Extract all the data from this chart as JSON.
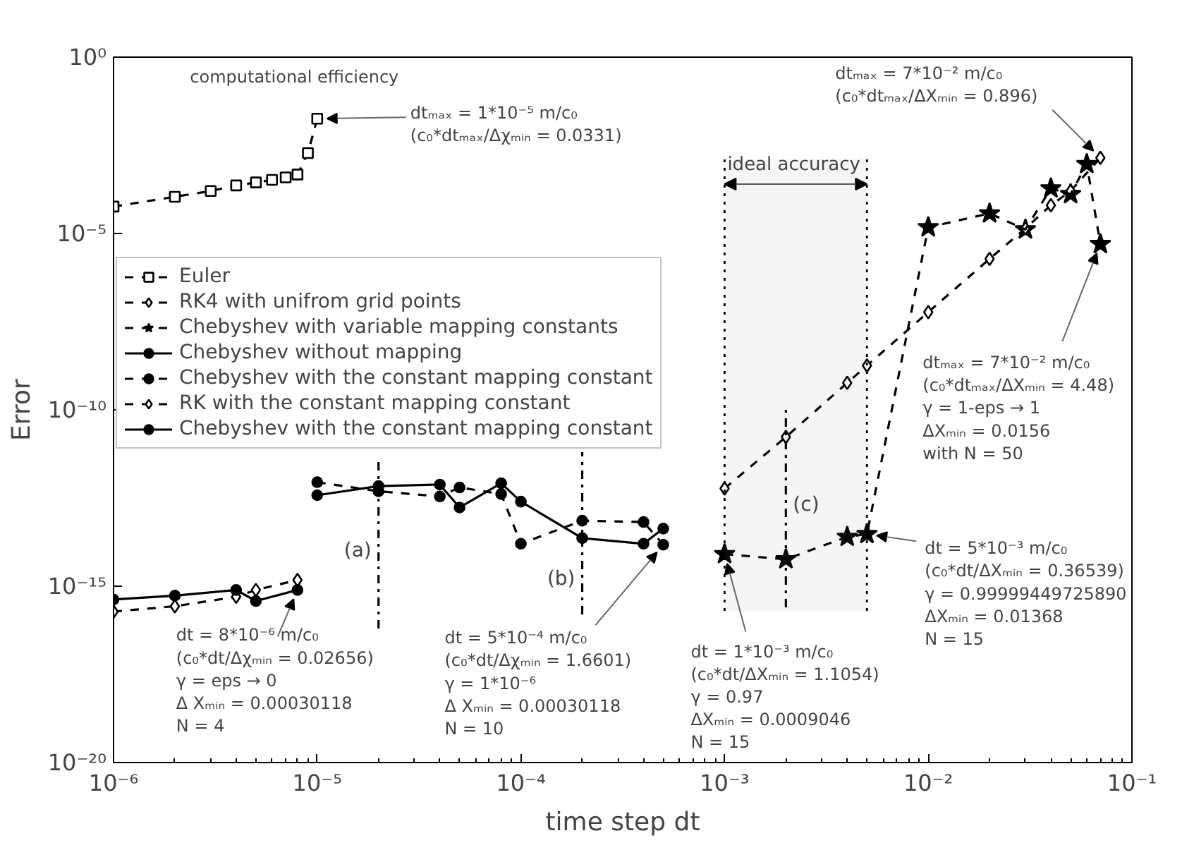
{
  "chart_data": {
    "type": "line",
    "xlabel": "time step dt",
    "ylabel": "Error",
    "log": "xy",
    "xlim": [
      1e-06,
      0.1
    ],
    "ylim": [
      1e-20,
      1
    ],
    "xticks": [
      {
        "value": 1e-06,
        "label": "10⁻⁶"
      },
      {
        "value": 1e-05,
        "label": "10⁻⁵"
      },
      {
        "value": 0.0001,
        "label": "10⁻⁴"
      },
      {
        "value": 0.001,
        "label": "10⁻³"
      },
      {
        "value": 0.01,
        "label": "10⁻²"
      },
      {
        "value": 0.1,
        "label": "10⁻¹"
      }
    ],
    "yticks": [
      {
        "value": 1e-20,
        "label": "10⁻²⁰"
      },
      {
        "value": 1e-15,
        "label": "10⁻¹⁵"
      },
      {
        "value": 1e-10,
        "label": "10⁻¹⁰"
      },
      {
        "value": 1e-05,
        "label": "10⁻⁵"
      },
      {
        "value": 1,
        "label": "10⁰"
      }
    ],
    "grid": false,
    "legend": "left",
    "series": [
      {
        "name": "Euler",
        "color": "#000000",
        "marker": "square",
        "line_style": "dashed",
        "x": [
          1e-06,
          2e-06,
          3e-06,
          4e-06,
          5e-06,
          6e-06,
          7e-06,
          8e-06,
          9e-06,
          1e-05
        ],
        "values": [
          5.8e-05,
          0.00011,
          0.00016,
          0.00023,
          0.00028,
          0.00033,
          0.00039,
          0.00047,
          0.0019,
          0.018
        ]
      },
      {
        "name": "RK4 with unifrom grid points",
        "color": "#000000",
        "marker": "diamond",
        "line_style": "dashed",
        "x": [
          0.001,
          0.002,
          0.004,
          0.005,
          0.01,
          0.02,
          0.03,
          0.04,
          0.05,
          0.07
        ],
        "values": [
          5.9e-13,
          1.7e-11,
          5.8e-10,
          1.8e-09,
          5.9e-08,
          1.9e-06,
          1.4e-05,
          6.3e-05,
          0.00016,
          0.0014
        ]
      },
      {
        "name": "Chebyshev with variable mapping constants",
        "color": "#000000",
        "marker": "star",
        "line_style": "dashed",
        "x": [
          0.001,
          0.002,
          0.004,
          0.005,
          0.01,
          0.02,
          0.03,
          0.04,
          0.05,
          0.06,
          0.07
        ],
        "values": [
          8.1e-15,
          5.8e-15,
          2.5e-14,
          3e-14,
          1.5e-05,
          3.7e-05,
          1.3e-05,
          0.00019,
          0.00013,
          0.00093,
          5e-06
        ]
      },
      {
        "name": "Chebyshev without mapping",
        "color": "#000000",
        "marker": "circle",
        "line_style": "solid",
        "x": [
          1e-05,
          2e-05,
          4e-05,
          5e-05,
          8e-05,
          0.0001,
          0.0002,
          0.0004,
          0.0005
        ],
        "values": [
          3.8e-13,
          6.9e-13,
          7.6e-13,
          1.7e-13,
          8.3e-13,
          2.5e-13,
          2.3e-14,
          1.6e-14,
          4.3e-14
        ]
      },
      {
        "name": "Chebyshev with the constant mapping constant",
        "color": "#000000",
        "marker": "circle",
        "line_style": "dashed",
        "x": [
          1e-05,
          2e-05,
          4e-05,
          5e-05,
          8e-05,
          0.0001,
          0.0002,
          0.0004,
          0.0005
        ],
        "values": [
          8.9e-13,
          4.9e-13,
          3.5e-13,
          6.3e-13,
          4.1e-13,
          1.6e-14,
          7.2e-14,
          6.6e-14,
          1.5e-14
        ]
      },
      {
        "name": "RK with the constant mapping constant",
        "color": "#000000",
        "marker": "diamond",
        "line_style": "dashed",
        "x": [
          1e-06,
          2e-06,
          4e-06,
          5e-06,
          8e-06
        ],
        "values": [
          1.9e-16,
          2.7e-16,
          5e-16,
          7.8e-16,
          1.5e-15
        ]
      },
      {
        "name": "Chebyshev with the constant mapping constant",
        "color": "#000000",
        "marker": "circle",
        "line_style": "solid",
        "x": [
          1e-06,
          2e-06,
          4e-06,
          5e-06,
          8e-06
        ],
        "values": [
          4.2e-16,
          5.4e-16,
          7.8e-16,
          3.8e-16,
          7.8e-16
        ]
      }
    ],
    "ref_lines": [
      {
        "axis": "x",
        "value": 2e-05,
        "label": "(a)",
        "line_style": "dashed"
      },
      {
        "axis": "x",
        "value": 0.0002,
        "label": "(b)",
        "line_style": "dashed"
      },
      {
        "axis": "x",
        "value": 0.002,
        "label": "(c)",
        "line_style": "dashed"
      }
    ],
    "bands": [
      {
        "axis": "x",
        "from": 0.001,
        "to": 0.005,
        "label": "ideal accuracy"
      }
    ],
    "annotations": [
      "computational efficiency",
      {
        "text": "dtₘₐₓ = 1*10⁻⁵ m/c₀\n(c₀*dtₘₐₓ/Δχₘᵢₙ = 0.0331)",
        "x": 1e-05,
        "y": 0.018
      },
      {
        "text": "dt = 8*10⁻⁶ m/c₀\n(c₀*dt/Δχₘᵢₙ = 0.02656)\nγ = eps → 0\nΔ Xₘᵢₙ = 0.00030118\nN = 4",
        "x": 8e-06,
        "y": 7.8e-16
      },
      {
        "text": "dt = 5*10⁻⁴ m/c₀\n(c₀*dt/Δχₘᵢₙ = 1.6601)\nγ = 1*10⁻⁶\nΔ Xₘᵢₙ = 0.00030118\nN = 10",
        "x": 0.0005,
        "y": 1.5e-14
      },
      {
        "text": "dt = 1*10⁻³ m/c₀\n(c₀*dt/ΔXₘᵢₙ = 1.1054)\nγ = 0.97\nΔXₘᵢₙ = 0.0009046\nN = 15",
        "x": 0.001,
        "y": 8.1e-15
      },
      {
        "text": "dt = 5*10⁻³ m/c₀\n(c₀*dt/ΔXₘᵢₙ = 0.36539)\nγ = 0.99999449725890\nΔXₘᵢₙ = 0.01368\nN = 15",
        "x": 0.005,
        "y": 3e-14
      },
      {
        "text": "dtₘₐₓ = 7*10⁻² m/c₀\n(c₀*dtₘₐₓ/ΔXₘᵢₙ = 4.48)\nγ = 1-eps → 1\nΔXₘᵢₙ = 0.0156\nwith N = 50",
        "x": 0.07,
        "y": 5e-06
      },
      {
        "text": "dtₘₐₓ = 7*10⁻² m/c₀\n(c₀*dtₘₐₓ/ΔXₘᵢₙ = 0.896)",
        "x": 0.07,
        "y": 0.0014
      }
    ]
  }
}
